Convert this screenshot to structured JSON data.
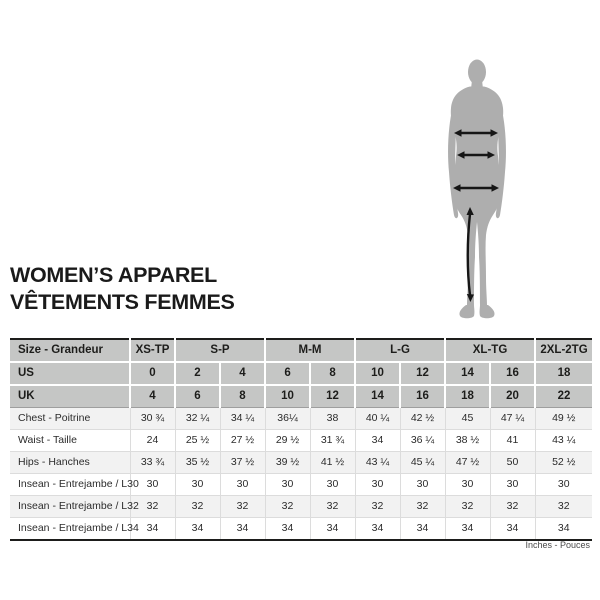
{
  "page": {
    "title_line1": "WOMEN’S APPAREL",
    "title_line2": "VÊTEMENTS FEMMES",
    "footnote": "Inches - Pouces"
  },
  "figure": {
    "name": "female-silhouette-measurement-guide",
    "arrows": [
      "chest-width",
      "waist-width",
      "hips-width",
      "inseam-length"
    ],
    "silhouette_color": "#aeaeae",
    "arrow_color": "#161616"
  },
  "chart_data": {
    "type": "table",
    "title": "WOMEN’S APPAREL / VÊTEMENTS FEMMES",
    "units_note": "Inches - Pouces",
    "corner_label": "Size - Grandeur",
    "size_groups": [
      {
        "label": "XS-TP",
        "span": 1
      },
      {
        "label": "S-P",
        "span": 2
      },
      {
        "label": "M-M",
        "span": 2
      },
      {
        "label": "L-G",
        "span": 2
      },
      {
        "label": "XL-TG",
        "span": 2
      },
      {
        "label": "2XL-2TG",
        "span": 1
      }
    ],
    "header_rows": [
      {
        "label": "US",
        "values": [
          "0",
          "2",
          "4",
          "6",
          "8",
          "10",
          "12",
          "14",
          "16",
          "18"
        ]
      },
      {
        "label": "UK",
        "values": [
          "4",
          "6",
          "8",
          "10",
          "12",
          "14",
          "16",
          "18",
          "20",
          "22"
        ]
      }
    ],
    "body_rows": [
      {
        "label": "Chest - Poitrine",
        "values": [
          "30 ¾",
          "32 ¼",
          "34 ¼",
          "36¼",
          "38",
          "40 ¼",
          "42 ½",
          "45",
          "47 ¼",
          "49 ½"
        ]
      },
      {
        "label": "Waist - Taille",
        "values": [
          "24",
          "25 ½",
          "27 ½",
          "29 ½",
          "31 ¾",
          "34",
          "36 ¼",
          "38 ½",
          "41",
          "43 ¼"
        ]
      },
      {
        "label": "Hips - Hanches",
        "values": [
          "33 ¾",
          "35 ½",
          "37 ½",
          "39 ½",
          "41 ½",
          "43 ¼",
          "45 ¼",
          "47 ½",
          "50",
          "52 ½"
        ]
      },
      {
        "label": "Insean - Entrejambe / L30",
        "values": [
          "30",
          "30",
          "30",
          "30",
          "30",
          "30",
          "30",
          "30",
          "30",
          "30"
        ]
      },
      {
        "label": "Insean - Entrejambe / L32",
        "values": [
          "32",
          "32",
          "32",
          "32",
          "32",
          "32",
          "32",
          "32",
          "32",
          "32"
        ]
      },
      {
        "label": "Insean - Entrejambe / L34",
        "values": [
          "34",
          "34",
          "34",
          "34",
          "34",
          "34",
          "34",
          "34",
          "34",
          "34"
        ]
      }
    ]
  },
  "colors": {
    "header_bg": "#c5c6c5",
    "row_alt_bg": "#f2f2f2",
    "border_dark": "#1d1d1b",
    "grid_line": "#dcdcdc",
    "text": "#1d1d1b"
  }
}
